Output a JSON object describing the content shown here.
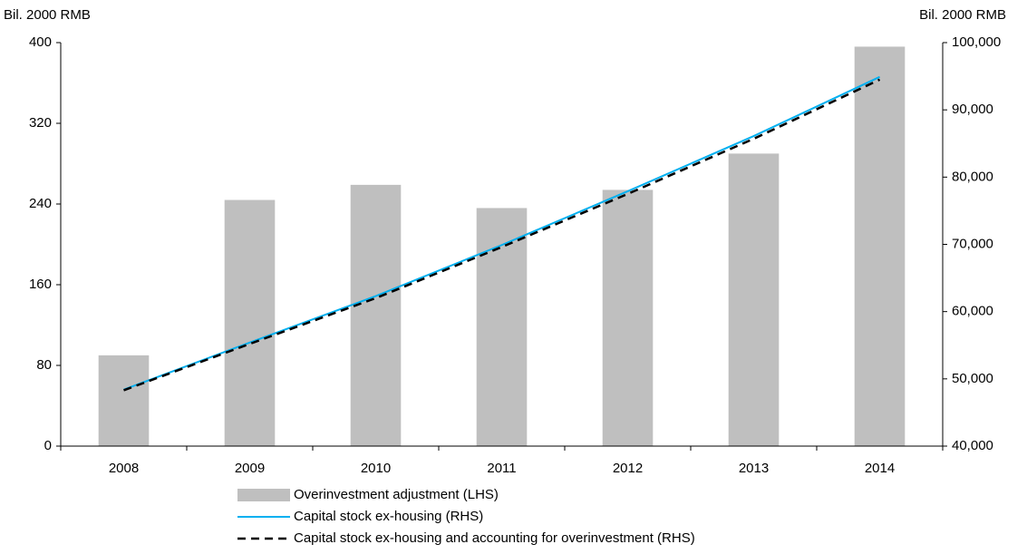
{
  "chart_data": {
    "type": "bar_line",
    "ylabel": "Bil. 2000 RMB",
    "y2label": "Bil. 2000 RMB",
    "categories": [
      "2008",
      "2009",
      "2010",
      "2011",
      "2012",
      "2013",
      "2014"
    ],
    "series": [
      {
        "name": "Overinvestment adjustment (LHS)",
        "type": "bar",
        "axis": "y",
        "color": "#bfbfbf",
        "values": [
          90,
          244,
          259,
          236,
          254,
          290,
          396
        ]
      },
      {
        "name": "Capital stock ex-housing (RHS)",
        "type": "line",
        "axis": "y2",
        "color": "#00b0f0",
        "line_style": "solid",
        "values": [
          48400,
          55400,
          62300,
          69900,
          77900,
          86100,
          94900
        ]
      },
      {
        "name": "Capital stock ex-housing and accounting for overinvestment (RHS)",
        "type": "line",
        "axis": "y2",
        "color": "#000000",
        "line_style": "dashed",
        "values": [
          48300,
          55200,
          62000,
          69600,
          77500,
          85700,
          94500
        ]
      }
    ],
    "ylim": [
      0,
      400
    ],
    "yticks": [
      0,
      80,
      160,
      240,
      320,
      400
    ],
    "y2lim": [
      40000,
      100000
    ],
    "y2ticks": [
      {
        "value": 40000,
        "label": "40,000"
      },
      {
        "value": 50000,
        "label": "50,000"
      },
      {
        "value": 60000,
        "label": "60,000"
      },
      {
        "value": 70000,
        "label": "70,000"
      },
      {
        "value": 80000,
        "label": "80,000"
      },
      {
        "value": 90000,
        "label": "90,000"
      },
      {
        "value": 100000,
        "label": "100,000"
      }
    ],
    "grid": false
  }
}
